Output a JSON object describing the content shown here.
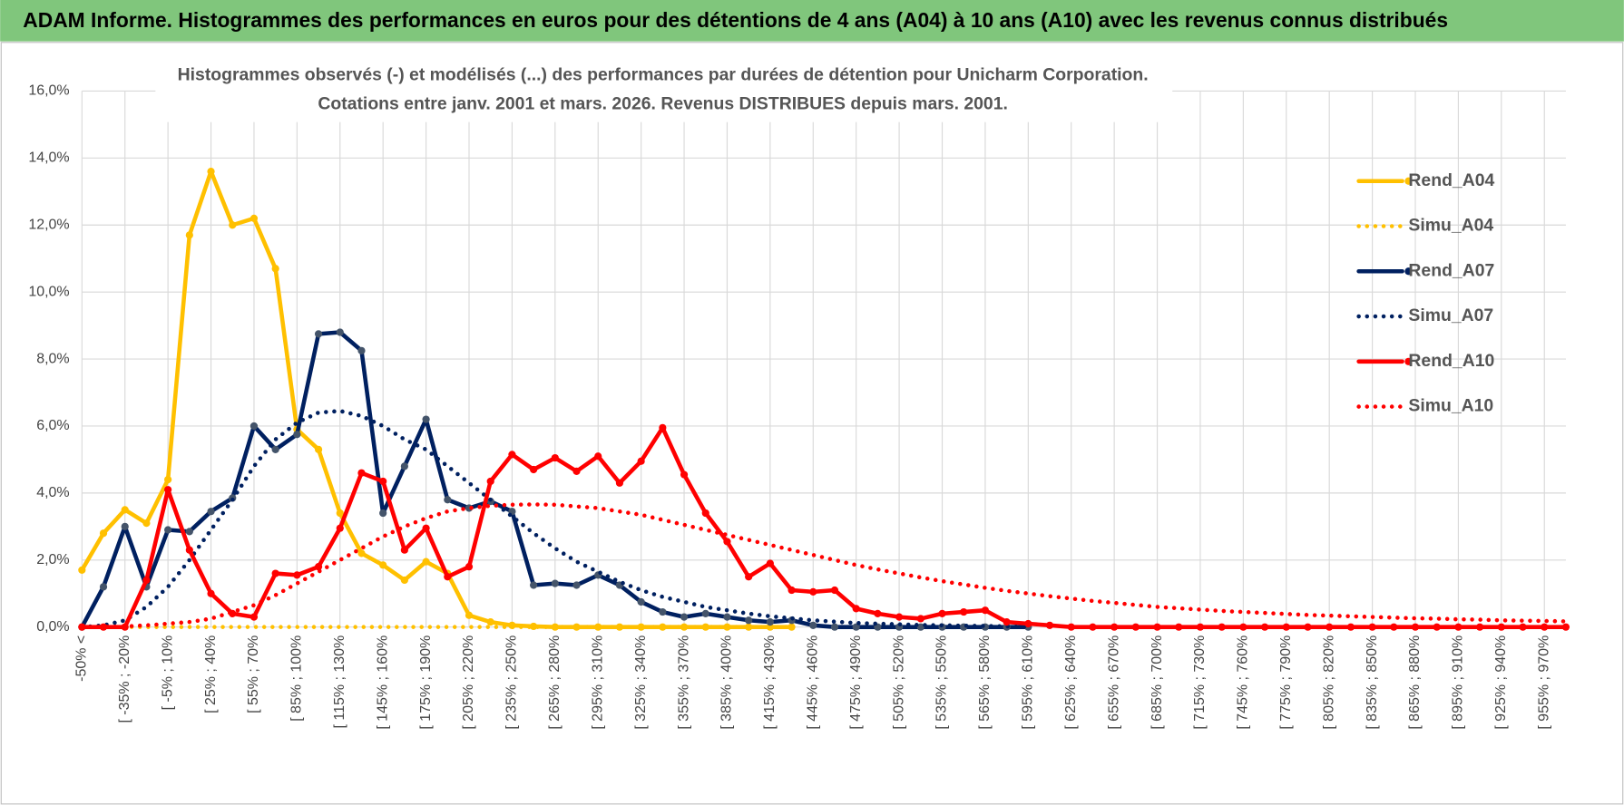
{
  "header": {
    "title": "ADAM Informe. Histogrammes des performances en euros pour des détentions de 4 ans (A04) à 10 ans (A10) avec les revenus connus distribués"
  },
  "chart_data": {
    "type": "line",
    "title": "Histogrammes observés (-) et modélisés (...) des performances par durées de détention pour Unicharm Corporation.",
    "subtitle": "Cotations entre janv. 2001 et mars. 2026.  Revenus DISTRIBUES depuis mars. 2001.",
    "categories": [
      "-50% <",
      null,
      "[ -35% ; -20%",
      null,
      "[ -5% ; 10%",
      null,
      "[ 25% ; 40%",
      null,
      "[ 55% ; 70%",
      null,
      "[ 85% ; 100%",
      null,
      "[ 115% ; 130%",
      null,
      "[ 145% ; 160%",
      null,
      "[ 175% ; 190%",
      null,
      "[ 205% ; 220%",
      null,
      "[ 235% ; 250%",
      null,
      "[ 265% ; 280%",
      null,
      "[ 295% ; 310%",
      null,
      "[ 325% ; 340%",
      null,
      "[ 355% ; 370%",
      null,
      "[ 385% ; 400%",
      null,
      "[ 415% ; 430%",
      null,
      "[ 445% ; 460%",
      null,
      "[ 475% ; 490%",
      null,
      "[ 505% ; 520%",
      null,
      "[ 535% ; 550%",
      null,
      "[ 565% ; 580%",
      null,
      "[ 595% ; 610%",
      null,
      "[ 625% ; 640%",
      null,
      "[ 655% ; 670%",
      null,
      "[ 685% ; 700%",
      null,
      "[ 715% ; 730%",
      null,
      "[ 745% ; 760%",
      null,
      "[ 775% ; 790%",
      null,
      "[ 805% ; 820%",
      null,
      "[ 835% ; 850%",
      null,
      "[ 865% ; 880%",
      null,
      "[ 895% ; 910%",
      null,
      "[ 925% ; 940%",
      null,
      "[ 955% ; 970%",
      null
    ],
    "series": [
      {
        "name": "Rend_A04",
        "color": "#ffc000",
        "dash": "solid",
        "markers": true,
        "values": [
          1.7,
          2.8,
          3.5,
          3.1,
          4.4,
          11.7,
          13.6,
          12.0,
          12.2,
          10.7,
          5.9,
          5.3,
          3.4,
          2.2,
          1.85,
          1.4,
          1.95,
          1.6,
          0.35,
          0.15,
          0.05,
          0.02,
          0,
          0,
          0,
          0,
          0,
          0,
          0,
          0,
          0,
          0,
          0,
          0,
          null,
          null,
          null,
          null,
          null,
          null,
          null,
          null,
          null,
          null,
          null,
          null,
          null,
          null,
          null,
          null,
          null,
          null,
          null,
          null,
          null,
          null,
          null,
          null,
          null,
          null,
          null,
          null,
          null,
          null,
          null,
          null,
          null,
          null,
          null,
          null
        ]
      },
      {
        "name": "Simu_A04",
        "color": "#ffc000",
        "dash": "dot",
        "markers": false,
        "values": [
          0,
          0,
          0,
          0,
          0,
          0,
          0,
          0,
          0,
          0,
          0,
          0,
          0,
          0,
          0,
          0,
          0,
          0,
          0,
          0,
          0,
          0,
          0,
          0,
          0,
          0,
          0,
          0,
          0,
          0,
          0,
          0,
          0,
          0,
          null,
          null,
          null,
          null,
          null,
          null,
          null,
          null,
          null,
          null,
          null,
          null,
          null,
          null,
          null,
          null,
          null,
          null,
          null,
          null,
          null,
          null,
          null,
          null,
          null,
          null,
          null,
          null,
          null,
          null,
          null,
          null,
          null,
          null,
          null,
          null
        ]
      },
      {
        "name": "Rend_A07",
        "color": "#002060",
        "dash": "solid",
        "markers": true,
        "values": [
          0,
          1.2,
          3.0,
          1.2,
          2.9,
          2.85,
          3.45,
          3.85,
          6.0,
          5.3,
          5.75,
          8.75,
          8.8,
          8.25,
          3.4,
          4.8,
          6.2,
          3.8,
          3.55,
          3.75,
          3.45,
          1.25,
          1.3,
          1.25,
          1.55,
          1.25,
          0.75,
          0.45,
          0.3,
          0.4,
          0.3,
          0.2,
          0.15,
          0.2,
          0.05,
          0,
          0,
          0,
          0,
          0,
          0,
          0,
          0,
          0,
          0,
          null,
          null,
          null,
          null,
          null,
          null,
          null,
          null,
          null,
          null,
          null,
          null,
          null,
          null,
          null,
          null,
          null,
          null,
          null,
          null,
          null,
          null,
          null,
          null,
          null
        ]
      },
      {
        "name": "Simu_A07",
        "color": "#002060",
        "dash": "dot",
        "markers": false,
        "values": [
          0,
          0.05,
          0.2,
          0.6,
          1.2,
          2.0,
          2.9,
          3.8,
          4.8,
          5.6,
          6.1,
          6.4,
          6.45,
          6.3,
          6.0,
          5.6,
          5.3,
          4.8,
          4.3,
          3.8,
          3.3,
          2.8,
          2.35,
          1.95,
          1.65,
          1.35,
          1.1,
          0.9,
          0.75,
          0.6,
          0.5,
          0.4,
          0.32,
          0.26,
          0.2,
          0.16,
          0.12,
          0.1,
          0.08,
          0.06,
          0.05,
          0.04,
          0.03,
          0.02,
          0.01,
          null,
          null,
          null,
          null,
          null,
          null,
          null,
          null,
          null,
          null,
          null,
          null,
          null,
          null,
          null,
          null,
          null,
          null,
          null,
          null,
          null,
          null,
          null,
          null,
          null
        ]
      },
      {
        "name": "Rend_A10",
        "color": "#ff0000",
        "dash": "solid",
        "markers": true,
        "values": [
          0,
          0,
          0,
          1.4,
          4.1,
          2.3,
          1.0,
          0.4,
          0.3,
          1.6,
          1.55,
          1.8,
          2.95,
          4.6,
          4.35,
          2.3,
          2.95,
          1.5,
          1.8,
          4.35,
          5.15,
          4.7,
          5.05,
          4.65,
          5.1,
          4.3,
          4.95,
          5.95,
          4.55,
          3.4,
          2.55,
          1.5,
          1.9,
          1.1,
          1.05,
          1.1,
          0.55,
          0.4,
          0.3,
          0.25,
          0.4,
          0.45,
          0.5,
          0.15,
          0.1,
          0.05,
          0,
          0,
          0,
          0,
          0,
          0,
          0,
          0,
          0,
          0,
          0,
          0,
          0,
          0,
          0,
          0,
          0,
          0,
          0,
          0,
          0,
          0,
          0,
          0
        ]
      },
      {
        "name": "Simu_A10",
        "color": "#ff0000",
        "dash": "dot",
        "markers": false,
        "values": [
          0,
          0,
          0.02,
          0.05,
          0.1,
          0.15,
          0.25,
          0.45,
          0.65,
          0.95,
          1.3,
          1.65,
          2.0,
          2.35,
          2.7,
          3.0,
          3.25,
          3.45,
          3.55,
          3.62,
          3.65,
          3.66,
          3.65,
          3.6,
          3.55,
          3.45,
          3.35,
          3.2,
          3.05,
          2.9,
          2.75,
          2.6,
          2.45,
          2.3,
          2.15,
          2.0,
          1.85,
          1.72,
          1.6,
          1.48,
          1.37,
          1.27,
          1.17,
          1.08,
          1.0,
          0.92,
          0.85,
          0.78,
          0.72,
          0.66,
          0.6,
          0.56,
          0.52,
          0.48,
          0.45,
          0.42,
          0.39,
          0.36,
          0.34,
          0.32,
          0.3,
          0.28,
          0.26,
          0.25,
          0.23,
          0.22,
          0.2,
          0.19,
          0.18,
          0.17
        ]
      }
    ],
    "ylim": [
      0,
      16
    ],
    "yticks": [
      {
        "value": 0,
        "label": "0,0%"
      },
      {
        "value": 2,
        "label": "2,0%"
      },
      {
        "value": 4,
        "label": "4,0%"
      },
      {
        "value": 6,
        "label": "6,0%"
      },
      {
        "value": 8,
        "label": "8,0%"
      },
      {
        "value": 10,
        "label": "10,0%"
      },
      {
        "value": 12,
        "label": "12,0%"
      },
      {
        "value": 14,
        "label": "14,0%"
      },
      {
        "value": 16,
        "label": "16,0%"
      }
    ],
    "grid": true,
    "legend": "right"
  }
}
